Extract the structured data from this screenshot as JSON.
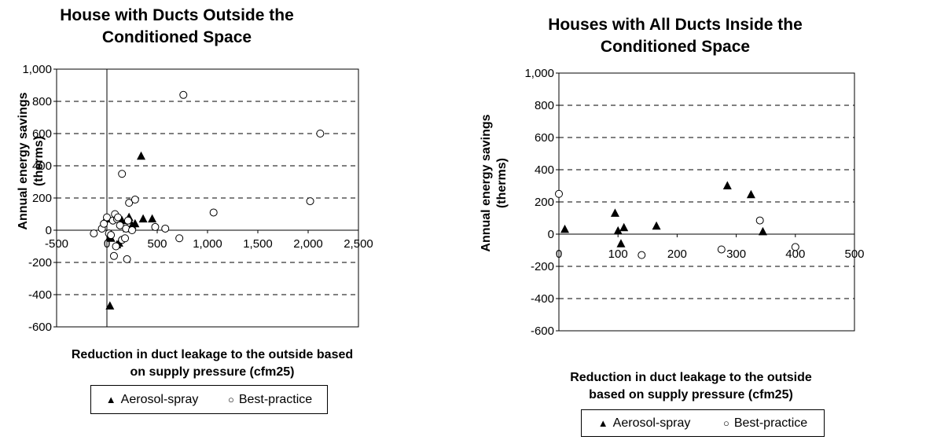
{
  "chart_data": [
    {
      "type": "scatter",
      "title": "House with Ducts Outside the\nConditioned Space",
      "xlabel": "Reduction in duct leakage to the outside based\non supply pressure (cfm25)",
      "ylabel": "Annual energy savings\n(therms)",
      "xlim": [
        -500,
        2500
      ],
      "ylim": [
        -600,
        1000
      ],
      "x_ticks": [
        "-500",
        "0",
        "500",
        "1,000",
        "1,500",
        "2,000",
        "2,500"
      ],
      "y_ticks": [
        "1,000",
        "800",
        "600",
        "400",
        "200",
        "0",
        "-200",
        "-400",
        "-600"
      ],
      "grid": "horizontal dashed",
      "legend": "bottom",
      "series": [
        {
          "name": "Aerosol-spray",
          "marker": "triangle",
          "points": [
            [
              -10,
              70
            ],
            [
              30,
              -40
            ],
            [
              40,
              -50
            ],
            [
              100,
              -90
            ],
            [
              120,
              -80
            ],
            [
              150,
              60
            ],
            [
              200,
              10
            ],
            [
              220,
              80
            ],
            [
              250,
              30
            ],
            [
              280,
              40
            ],
            [
              340,
              460
            ],
            [
              360,
              70
            ],
            [
              450,
              70
            ],
            [
              30,
              -470
            ]
          ]
        },
        {
          "name": "Best-practice",
          "marker": "circle",
          "points": [
            [
              -130,
              -20
            ],
            [
              -50,
              10
            ],
            [
              -30,
              40
            ],
            [
              0,
              80
            ],
            [
              20,
              -20
            ],
            [
              40,
              -30
            ],
            [
              60,
              60
            ],
            [
              70,
              -160
            ],
            [
              80,
              100
            ],
            [
              90,
              -100
            ],
            [
              100,
              70
            ],
            [
              110,
              80
            ],
            [
              130,
              30
            ],
            [
              150,
              -60
            ],
            [
              150,
              350
            ],
            [
              180,
              -50
            ],
            [
              190,
              10
            ],
            [
              210,
              60
            ],
            [
              220,
              170
            ],
            [
              250,
              0
            ],
            [
              280,
              190
            ],
            [
              200,
              -180
            ],
            [
              480,
              20
            ],
            [
              580,
              10
            ],
            [
              720,
              -50
            ],
            [
              760,
              840
            ],
            [
              1060,
              110
            ],
            [
              2020,
              180
            ],
            [
              2120,
              600
            ]
          ]
        }
      ]
    },
    {
      "type": "scatter",
      "title": "Houses with All Ducts Inside the\nConditioned Space",
      "xlabel": "Reduction in duct leakage to the outside\nbased on supply pressure (cfm25)",
      "ylabel": "Annual energy savings\n(therms)",
      "xlim": [
        0,
        500
      ],
      "ylim": [
        -600,
        1000
      ],
      "x_ticks": [
        "0",
        "100",
        "200",
        "300",
        "400",
        "500"
      ],
      "y_ticks": [
        "1,000",
        "800",
        "600",
        "400",
        "200",
        "0",
        "-200",
        "-400",
        "-600"
      ],
      "grid": "horizontal dashed",
      "legend": "bottom",
      "series": [
        {
          "name": "Aerosol-spray",
          "marker": "triangle",
          "points": [
            [
              10,
              30
            ],
            [
              95,
              130
            ],
            [
              100,
              20
            ],
            [
              105,
              -60
            ],
            [
              110,
              40
            ],
            [
              165,
              50
            ],
            [
              285,
              300
            ],
            [
              325,
              245
            ],
            [
              345,
              15
            ]
          ]
        },
        {
          "name": "Best-practice",
          "marker": "circle",
          "points": [
            [
              0,
              250
            ],
            [
              140,
              -130
            ],
            [
              275,
              -95
            ],
            [
              340,
              85
            ],
            [
              400,
              -80
            ]
          ]
        }
      ]
    }
  ]
}
